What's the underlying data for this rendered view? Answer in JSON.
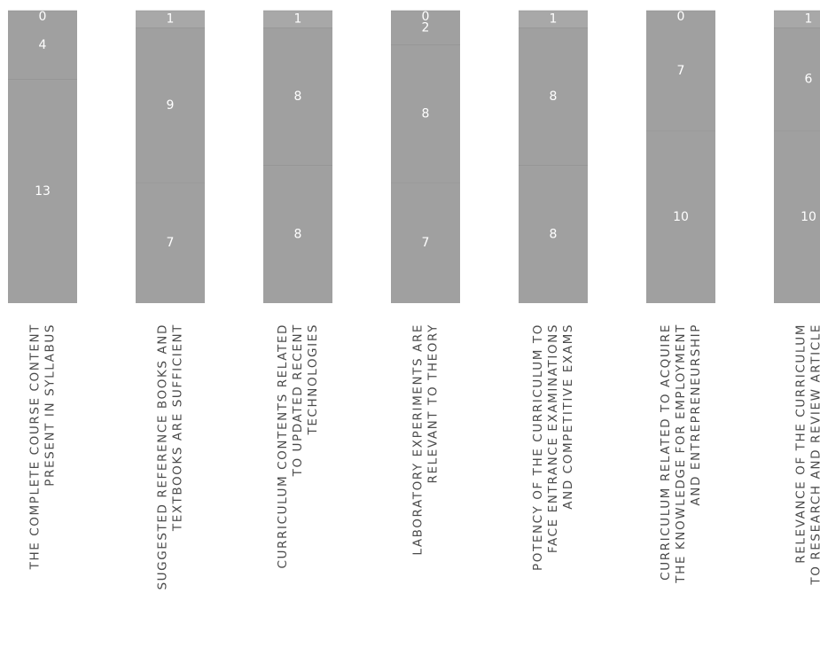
{
  "chart_data": {
    "type": "bar",
    "stacked": true,
    "categories": [
      [
        "THE COMPLETE COURSE CONTENT",
        "PRESENT IN SYLLABUS"
      ],
      [
        "SUGGESTED REFERENCE BOOKS AND",
        "TEXTBOOKS ARE SUFFICIENT"
      ],
      [
        "CURRICULUM CONTENTS RELATED",
        "TO UPDATED RECENT",
        "TECHNOLOGIES"
      ],
      [
        "LABORATORY EXPERIMENTS ARE",
        "RELEVANT TO THEORY"
      ],
      [
        "POTENCY OF THE CURRICULUM TO",
        "FACE ENTRANCE EXAMINATIONS",
        "AND COMPETITIVE EXAMS"
      ],
      [
        "CURRICULUM RELATED TO ACQUIRE",
        "THE KNOWLEDGE FOR EMPLOYMENT",
        "AND ENTREPRENEURSHIP"
      ],
      [
        "RELEVANCE OF THE CURRICULUM",
        "TO RESEARCH AND REVIEW ARTICLE"
      ]
    ],
    "series": [
      {
        "values": [
          0,
          1,
          1,
          0,
          1,
          0,
          1
        ],
        "color": "#a8a8a8"
      },
      {
        "values": [
          4,
          9,
          8,
          2,
          8,
          7,
          6
        ],
        "color": "#a0a0a0"
      },
      {
        "values": [
          13,
          7,
          8,
          8,
          8,
          10,
          10
        ],
        "color": "#a0a0a0"
      },
      {
        "values": [
          0,
          0,
          0,
          7,
          0,
          0,
          0
        ],
        "color": "#a0a0a0"
      }
    ],
    "label_colors": [
      "#eeeeee",
      "#ffffff"
    ],
    "orientation": "vertical",
    "legend": "none"
  }
}
